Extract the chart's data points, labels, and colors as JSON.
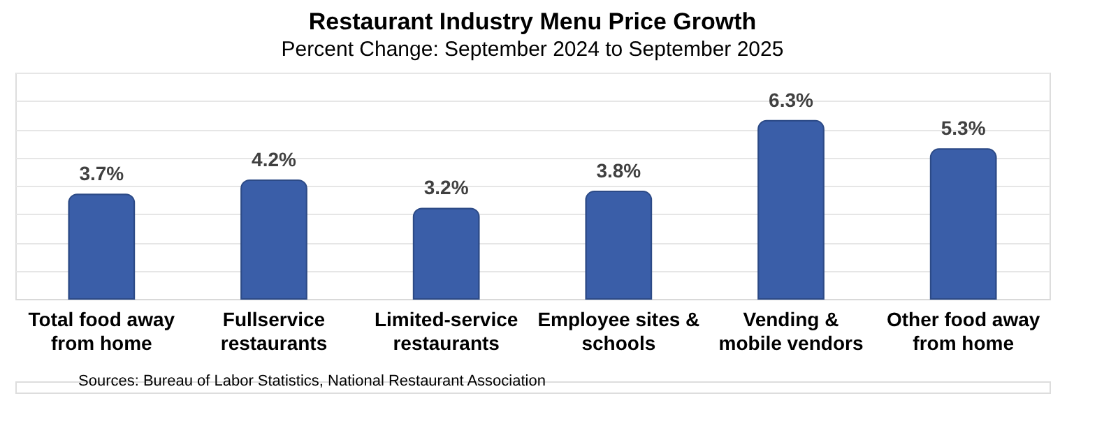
{
  "chart_data": {
    "type": "bar",
    "title": "Restaurant Industry Menu Price Growth",
    "subtitle": "Percent Change: September 2024 to September 2025",
    "categories": [
      "Total food away\nfrom home",
      "Fullservice\nrestaurants",
      "Limited-service\nrestaurants",
      "Employee sites &\nschools",
      "Vending &\nmobile vendors",
      "Other food away\nfrom home"
    ],
    "values": [
      3.7,
      4.2,
      3.2,
      3.8,
      6.3,
      5.3
    ],
    "color": "#3a5ea8",
    "value_labels": [
      "3.7%",
      "4.2%",
      "3.2%",
      "3.8%",
      "6.3%",
      "5.3%"
    ],
    "ylim": [
      0,
      8
    ],
    "grid": "y",
    "tick_labels": "x",
    "annotations": [
      "Sources: Bureau of Labor Statistics, National Restaurant Association"
    ]
  }
}
